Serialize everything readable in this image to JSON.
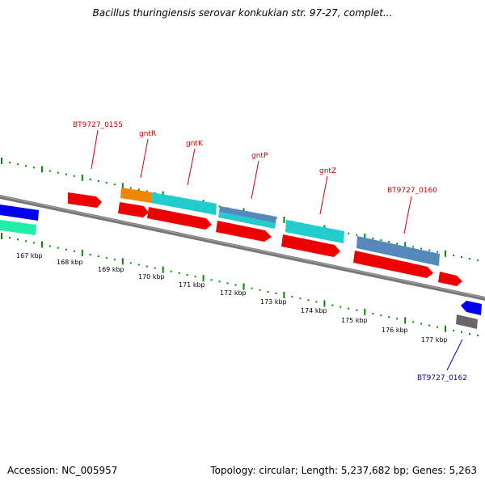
{
  "title": "Bacillus thuringiensis serovar konkukian str. 97-27, complet...",
  "footer": {
    "accession": "Accession: NC_005957",
    "summary": "Topology: circular; Length: 5,237,682 bp; Genes: 5,263"
  },
  "colors": {
    "forward_red": "#ee0000",
    "cyan": "#22cccc",
    "steelblue": "#5588bb",
    "orange": "#ee8800",
    "blue": "#0000ee",
    "mint": "#22eeaa",
    "gray": "#666666",
    "tick_green": "#008800",
    "label_red": "#cc0000",
    "label_blue": "#0000aa"
  },
  "scale": {
    "unit": "kbp",
    "labels": [
      "167 kbp",
      "168 kbp",
      "169 kbp",
      "170 kbp",
      "171 kbp",
      "172 kbp",
      "173 kbp",
      "174 kbp",
      "175 kbp",
      "176 kbp",
      "177 kbp"
    ]
  },
  "gene_labels": [
    {
      "text": "BT9727_0155",
      "color": "red"
    },
    {
      "text": "gntR",
      "color": "red"
    },
    {
      "text": "gntK",
      "color": "red"
    },
    {
      "text": "gntP",
      "color": "red"
    },
    {
      "text": "gntZ",
      "color": "red"
    },
    {
      "text": "BT9727_0160",
      "color": "red"
    },
    {
      "text": "BT9727_0162",
      "color": "blue"
    }
  ]
}
